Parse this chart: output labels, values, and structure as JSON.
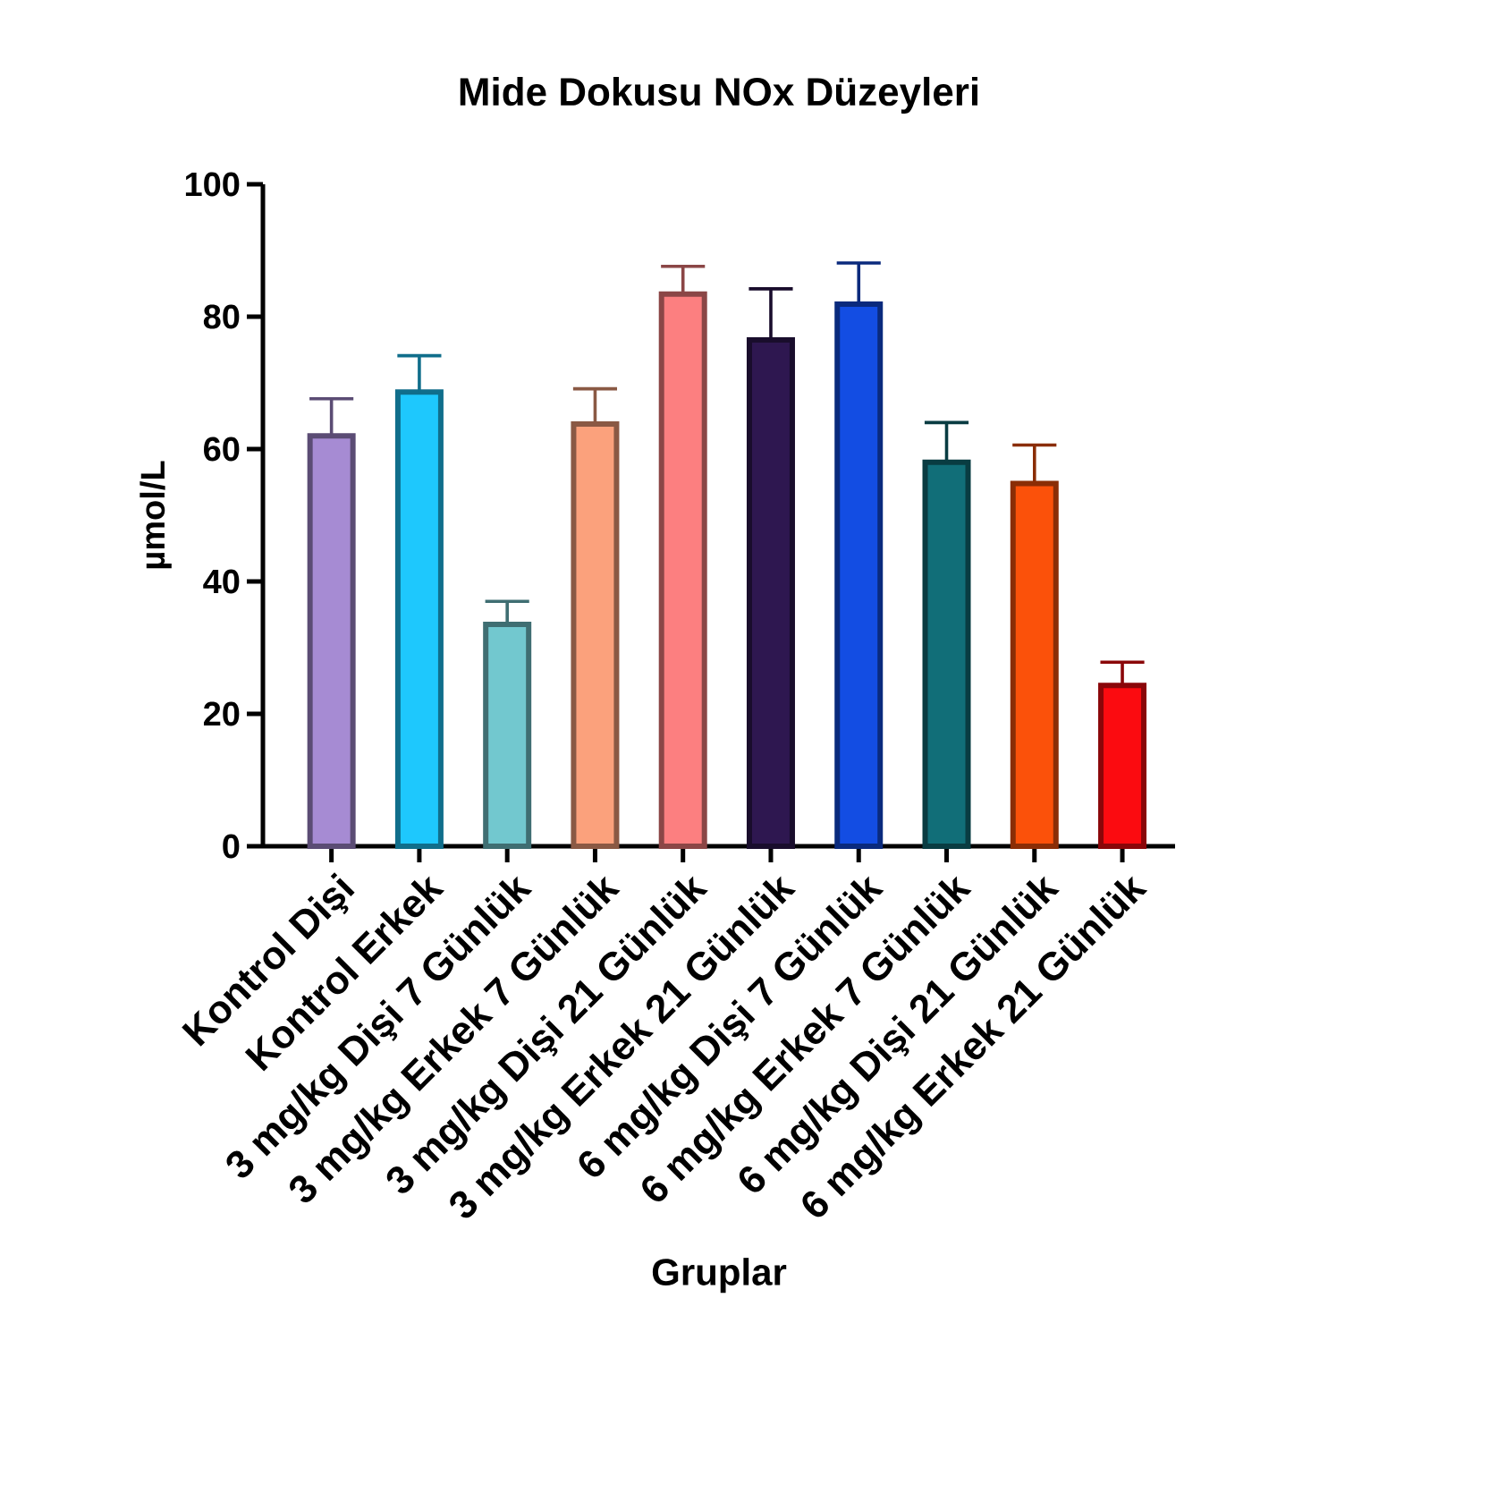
{
  "chart_data": {
    "type": "bar",
    "title": "Mide Dokusu NOx Düzeyleri",
    "xlabel": "Gruplar",
    "ylabel": "µmol/L",
    "categories": [
      "Kontrol Dişi",
      "Kontrol Erkek",
      "3 mg/kg Dişi 7 Günlük",
      "3 mg/kg Erkek 7 Günlük",
      "3 mg/kg Dişi 21 Günlük",
      "3 mg/kg Erkek 21 Günlük",
      "6 mg/kg Dişi 7 Günlük",
      "6 mg/kg Erkek 7 Günlük",
      "6 mg/kg Dişi 21 Günlük",
      "6 mg/kg Erkek 21 Günlük"
    ],
    "values": [
      62,
      68.6,
      33.5,
      63.8,
      83.4,
      76.5,
      81.9,
      58,
      54.8,
      24.3
    ],
    "errors": [
      [
        62,
        67.6
      ],
      [
        68.6,
        74.1
      ],
      [
        33.5,
        37
      ],
      [
        63.8,
        69.1
      ],
      [
        83.4,
        87.6
      ],
      [
        76.5,
        84.2
      ],
      [
        81.9,
        88.1
      ],
      [
        58,
        64
      ],
      [
        54.8,
        60.6
      ],
      [
        24.3,
        27.8
      ]
    ],
    "colors": [
      "#a68bd3",
      "#1ec8fd",
      "#72c8cf",
      "#fba17c",
      "#fc7f80",
      "#2e1750",
      "#134de3",
      "#116e78",
      "#fb510a",
      "#fb0b10"
    ],
    "ylim": [
      0,
      100
    ],
    "yticks": [
      0,
      20,
      40,
      60,
      80,
      100
    ]
  }
}
